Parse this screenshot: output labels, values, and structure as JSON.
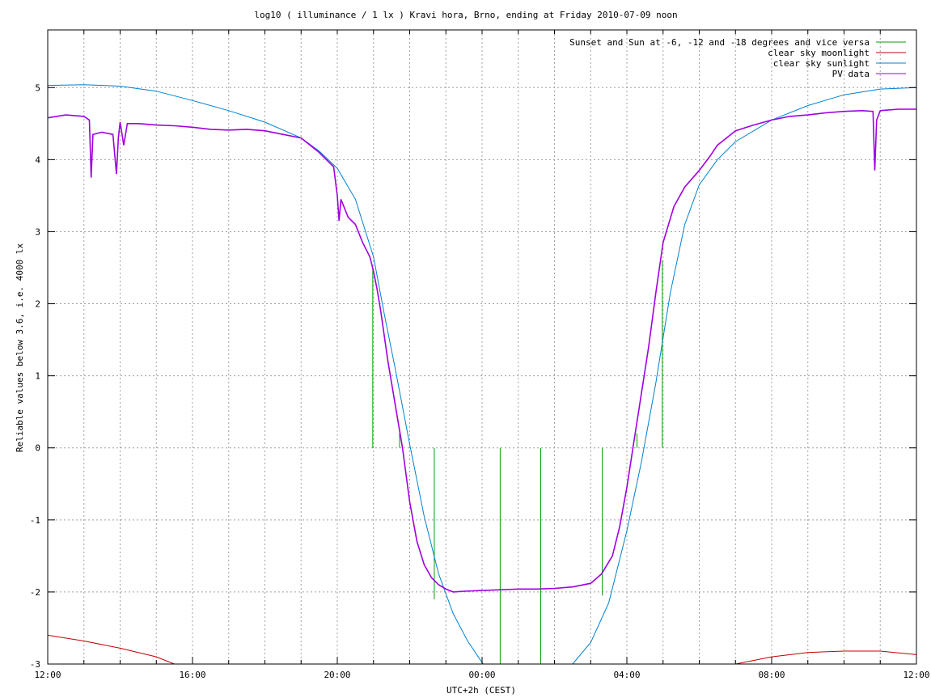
{
  "chart_data": {
    "type": "line",
    "title": "log10 ( illuminance / 1 lx ) Kravi hora, Brno, ending at Friday 2010-07-09 noon",
    "xlabel": "UTC+2h (CEST)",
    "ylabel": "Reliable values below 3.6, i.e. 4000 lx",
    "x_unit": "hours",
    "xlim": [
      12,
      36
    ],
    "ylim": [
      -3,
      5.8
    ],
    "x_ticks": [
      {
        "value": 12,
        "label": "12:00"
      },
      {
        "value": 16,
        "label": "16:00"
      },
      {
        "value": 20,
        "label": "20:00"
      },
      {
        "value": 24,
        "label": "00:00"
      },
      {
        "value": 28,
        "label": "04:00"
      },
      {
        "value": 32,
        "label": "08:00"
      },
      {
        "value": 36,
        "label": "12:00"
      }
    ],
    "y_ticks": [
      {
        "value": -3,
        "label": "-3"
      },
      {
        "value": -2,
        "label": "-2"
      },
      {
        "value": -1,
        "label": "-1"
      },
      {
        "value": 0,
        "label": "0"
      },
      {
        "value": 1,
        "label": "1"
      },
      {
        "value": 2,
        "label": "2"
      },
      {
        "value": 3,
        "label": "3"
      },
      {
        "value": 4,
        "label": "4"
      },
      {
        "value": 5,
        "label": "5"
      }
    ],
    "grid": true,
    "legend_position": "top-right",
    "series": [
      {
        "name": "Sunset and Sun at -6, -12 and -18 degrees and vice versa",
        "color": "#00a000",
        "kind": "impulses",
        "points": [
          {
            "x": 20.98,
            "y": 2.5
          },
          {
            "x": 21.72,
            "y": 0.2
          },
          {
            "x": 22.68,
            "y": -2.1
          },
          {
            "x": 24.5,
            "y": -3.0
          },
          {
            "x": 25.62,
            "y": -3.0
          },
          {
            "x": 27.32,
            "y": -2.05
          },
          {
            "x": 28.28,
            "y": 0.2
          },
          {
            "x": 28.98,
            "y": 2.6
          }
        ]
      },
      {
        "name": "clear sky moonlight",
        "color": "#c00000",
        "kind": "line",
        "x": [
          12.0,
          13.0,
          14.0,
          15.0,
          15.5,
          31.0,
          32.0,
          33.0,
          34.0,
          35.0,
          36.0
        ],
        "y": [
          -2.6,
          -2.68,
          -2.78,
          -2.9,
          -3.0,
          -3.0,
          -2.9,
          -2.84,
          -2.82,
          -2.82,
          -2.87
        ]
      },
      {
        "name": "clear sky sunlight",
        "color": "#0080d0",
        "kind": "line",
        "x": [
          12.0,
          13.0,
          14.0,
          15.0,
          16.0,
          17.0,
          18.0,
          19.0,
          19.5,
          20.0,
          20.5,
          21.0,
          21.3,
          21.6,
          22.0,
          22.4,
          22.8,
          23.2,
          23.6,
          24.0,
          24.5,
          25.0,
          25.5,
          26.0,
          26.5,
          27.0,
          27.5,
          28.0,
          28.4,
          28.8,
          29.2,
          29.6,
          30.0,
          30.5,
          31.0,
          32.0,
          33.0,
          34.0,
          35.0,
          36.0
        ],
        "y": [
          5.03,
          5.04,
          5.02,
          4.95,
          4.82,
          4.68,
          4.52,
          4.3,
          4.12,
          3.88,
          3.45,
          2.65,
          1.85,
          1.1,
          0.05,
          -0.95,
          -1.75,
          -2.3,
          -2.68,
          -2.98,
          -3.3,
          -3.5,
          -3.5,
          -3.3,
          -3.0,
          -2.7,
          -2.15,
          -1.15,
          -0.2,
          0.9,
          2.15,
          3.1,
          3.65,
          4.0,
          4.25,
          4.55,
          4.75,
          4.9,
          4.98,
          5.0
        ]
      },
      {
        "name": "PV data",
        "color": "#a000e0",
        "kind": "line",
        "x": [
          12.0,
          12.5,
          13.0,
          13.15,
          13.2,
          13.25,
          13.5,
          13.8,
          13.9,
          13.95,
          14.0,
          14.1,
          14.2,
          14.5,
          15.0,
          15.5,
          16.0,
          16.5,
          17.0,
          17.5,
          18.0,
          18.5,
          19.0,
          19.5,
          19.9,
          20.0,
          20.05,
          20.1,
          20.3,
          20.5,
          20.7,
          20.9,
          21.0,
          21.1,
          21.2,
          21.4,
          21.6,
          21.8,
          22.0,
          22.2,
          22.4,
          22.6,
          22.8,
          23.0,
          23.2,
          23.5,
          24.0,
          24.5,
          25.0,
          25.5,
          26.0,
          26.5,
          27.0,
          27.3,
          27.6,
          27.8,
          28.0,
          28.2,
          28.4,
          28.6,
          28.8,
          29.0,
          29.3,
          29.6,
          30.0,
          30.3,
          30.5,
          30.8,
          31.0,
          31.5,
          32.0,
          32.5,
          33.0,
          33.5,
          34.0,
          34.5,
          34.8,
          34.85,
          34.9,
          35.0,
          35.5,
          36.0
        ],
        "y": [
          4.58,
          4.62,
          4.6,
          4.55,
          3.75,
          4.35,
          4.38,
          4.35,
          3.8,
          4.3,
          4.52,
          4.2,
          4.5,
          4.5,
          4.48,
          4.47,
          4.45,
          4.42,
          4.41,
          4.42,
          4.4,
          4.35,
          4.3,
          4.1,
          3.9,
          3.5,
          3.15,
          3.45,
          3.2,
          3.1,
          2.85,
          2.65,
          2.45,
          2.2,
          1.9,
          1.2,
          0.6,
          0.0,
          -0.75,
          -1.3,
          -1.62,
          -1.8,
          -1.9,
          -1.96,
          -2.0,
          -1.99,
          -1.98,
          -1.97,
          -1.96,
          -1.96,
          -1.95,
          -1.93,
          -1.88,
          -1.75,
          -1.5,
          -1.1,
          -0.55,
          0.1,
          0.75,
          1.4,
          2.15,
          2.85,
          3.35,
          3.62,
          3.85,
          4.05,
          4.2,
          4.32,
          4.4,
          4.48,
          4.55,
          4.6,
          4.62,
          4.65,
          4.67,
          4.68,
          4.67,
          3.85,
          4.55,
          4.68,
          4.7,
          4.7
        ]
      }
    ]
  }
}
